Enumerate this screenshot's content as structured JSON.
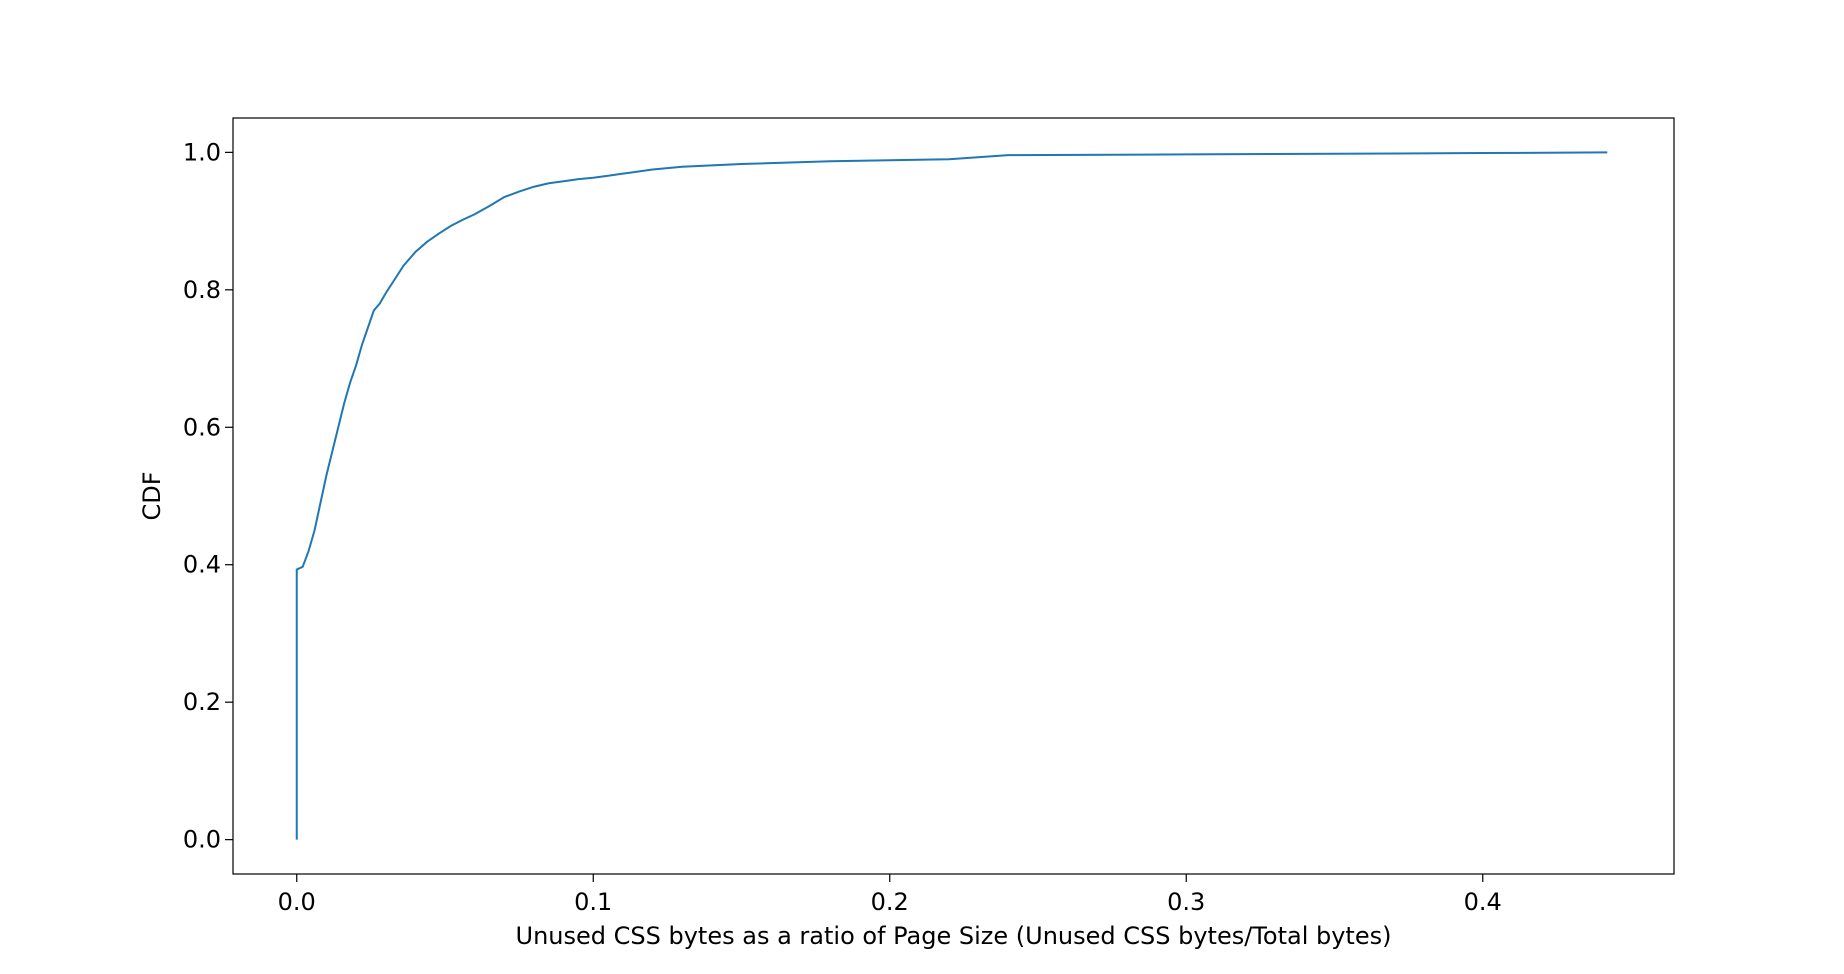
{
  "chart_data": {
    "type": "line",
    "title": "",
    "xlabel": "Unused CSS bytes as a ratio of Page Size (Unused CSS bytes/Total bytes)",
    "ylabel": "CDF",
    "xlim": [
      -0.0215,
      0.4645
    ],
    "ylim": [
      -0.05,
      1.05
    ],
    "grid": false,
    "legend": "none",
    "line_color": "#1f77b4",
    "x_ticks": [
      {
        "value": 0.0,
        "label": "0.0"
      },
      {
        "value": 0.1,
        "label": "0.1"
      },
      {
        "value": 0.2,
        "label": "0.2"
      },
      {
        "value": 0.3,
        "label": "0.3"
      },
      {
        "value": 0.4,
        "label": "0.4"
      }
    ],
    "y_ticks": [
      {
        "value": 0.0,
        "label": "0.0"
      },
      {
        "value": 0.2,
        "label": "0.2"
      },
      {
        "value": 0.4,
        "label": "0.4"
      },
      {
        "value": 0.6,
        "label": "0.6"
      },
      {
        "value": 0.8,
        "label": "0.8"
      },
      {
        "value": 1.0,
        "label": "1.0"
      }
    ],
    "series": [
      {
        "x": [
          0.0,
          0.0,
          0.002,
          0.004,
          0.006,
          0.008,
          0.01,
          0.012,
          0.014,
          0.016,
          0.018,
          0.02,
          0.022,
          0.024,
          0.026,
          0.028,
          0.03,
          0.033,
          0.036,
          0.04,
          0.044,
          0.048,
          0.052,
          0.056,
          0.06,
          0.065,
          0.07,
          0.075,
          0.08,
          0.085,
          0.09,
          0.095,
          0.1,
          0.105,
          0.11,
          0.12,
          0.13,
          0.15,
          0.18,
          0.22,
          0.24,
          0.3,
          0.35,
          0.4,
          0.442
        ],
        "y": [
          0.0,
          0.393,
          0.397,
          0.42,
          0.45,
          0.49,
          0.53,
          0.565,
          0.6,
          0.635,
          0.665,
          0.69,
          0.72,
          0.745,
          0.77,
          0.78,
          0.795,
          0.815,
          0.835,
          0.855,
          0.87,
          0.882,
          0.893,
          0.902,
          0.91,
          0.922,
          0.935,
          0.943,
          0.95,
          0.955,
          0.958,
          0.961,
          0.963,
          0.966,
          0.969,
          0.975,
          0.979,
          0.983,
          0.987,
          0.99,
          0.996,
          0.997,
          0.998,
          0.999,
          1.0
        ]
      }
    ]
  }
}
